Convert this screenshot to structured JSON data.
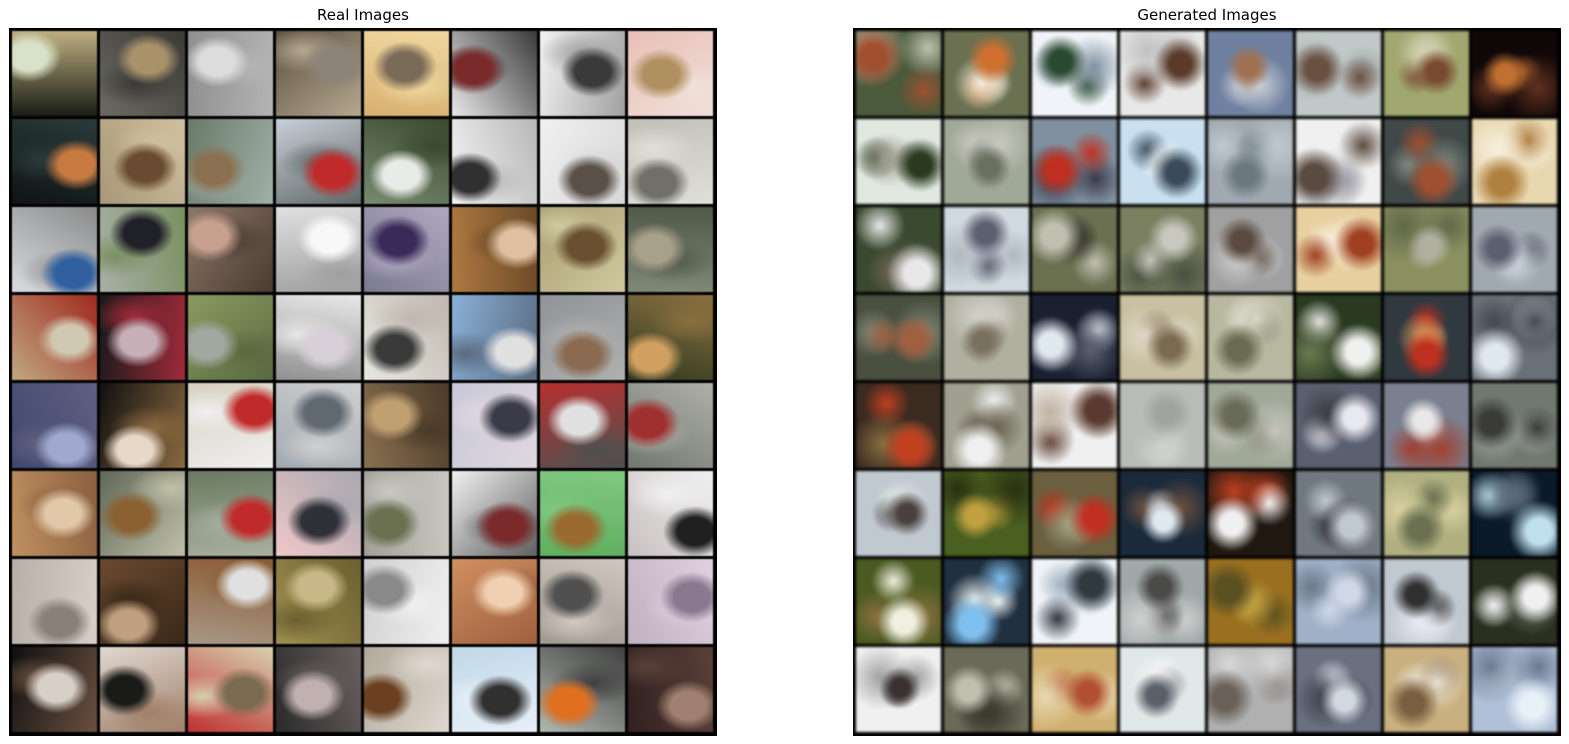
{
  "panels": [
    {
      "title": "Real Images",
      "kind": "real",
      "tiles": [
        [
          "#1a1e14",
          "#d8e2c8",
          "#bcae80"
        ],
        [
          "#6b6a64",
          "#a9926a",
          "#3b3a36"
        ],
        [
          "#8f8f8f",
          "#dcdcdc",
          "#b4b4b4"
        ],
        [
          "#5a5040",
          "#8c8478",
          "#b6a890"
        ],
        [
          "#d8b070",
          "#7a6a58",
          "#f0d8a0"
        ],
        [
          "#e8e8e8",
          "#7a2a2a",
          "#3a3a3a"
        ],
        [
          "#f2f2f2",
          "#3a3a3a",
          "#a0a0a0"
        ],
        [
          "#e8c0b8",
          "#b09060",
          "#f0e0d8"
        ],
        [
          "#101414",
          "#c87a40",
          "#2a3a3a"
        ],
        [
          "#a89878",
          "#6a4a30",
          "#d0c0a0"
        ],
        [
          "#6a7a68",
          "#8a7050",
          "#a0b0a8"
        ],
        [
          "#c8d0d8",
          "#c02a2a",
          "#606868"
        ],
        [
          "#7a8a70",
          "#e8ece8",
          "#3a4a30"
        ],
        [
          "#f4f4f4",
          "#303030",
          "#b8b8b8"
        ],
        [
          "#f0f0f0",
          "#5a5048",
          "#d8d8d8"
        ],
        [
          "#c0c0b8",
          "#707068",
          "#e0e0d8"
        ],
        [
          "#d8dce0",
          "#3060a0",
          "#8a8a8a"
        ],
        [
          "#a8b0a8",
          "#202028",
          "#7a9060"
        ],
        [
          "#8a7868",
          "#c8a090",
          "#4a3a30"
        ],
        [
          "#e0e0e0",
          "#f8f8f8",
          "#a0a0a0"
        ],
        [
          "#7a7a90",
          "#3a2a5a",
          "#b0a8c0"
        ],
        [
          "#b07840",
          "#e0c0a0",
          "#6a4a28"
        ],
        [
          "#a8a070",
          "#6a5030",
          "#d0c8a0"
        ],
        [
          "#808878",
          "#a8a088",
          "#505848"
        ],
        [
          "#c0a880",
          "#d0c8b0",
          "#a02a20"
        ],
        [
          "#1a1a1a",
          "#c8b0b8",
          "#a02a3a"
        ],
        [
          "#8a9a60",
          "#a0a8a0",
          "#5a6a40"
        ],
        [
          "#909090",
          "#d8d0d8",
          "#e8e8e8"
        ],
        [
          "#e8e8e0",
          "#3a3a3a",
          "#c0b8b0"
        ],
        [
          "#8ab0d8",
          "#e0e0e0",
          "#5a6a80"
        ],
        [
          "#909498",
          "#8a6a50",
          "#b0b0b0"
        ],
        [
          "#303a20",
          "#d0a060",
          "#8a7040"
        ],
        [
          "#404870",
          "#a0a8d0",
          "#606080"
        ],
        [
          "#101010",
          "#e8d8c8",
          "#8a6a40"
        ],
        [
          "#d8d0c0",
          "#c02a2a",
          "#f0f0f0"
        ],
        [
          "#a0a8b0",
          "#606870",
          "#d0d0d0"
        ],
        [
          "#8a7050",
          "#c0a070",
          "#4a3a28"
        ],
        [
          "#c8c8d8",
          "#3a3a48",
          "#e0d8e0"
        ],
        [
          "#b83030",
          "#e0e0e0",
          "#505050"
        ],
        [
          "#707870",
          "#a03030",
          "#b0b0a8"
        ],
        [
          "#c09060",
          "#e0c8a8",
          "#8a6040"
        ],
        [
          "#606858",
          "#8a6030",
          "#c0c0a8"
        ],
        [
          "#6a7a60",
          "#c02a2a",
          "#a8b0a0"
        ],
        [
          "#f0c8c8",
          "#303038",
          "#a8a8b0"
        ],
        [
          "#a0a098",
          "#6a7050",
          "#c8c8c0"
        ],
        [
          "#f0f0f0",
          "#7a2a2a",
          "#606060"
        ],
        [
          "#60b060",
          "#9a6a30",
          "#80c880"
        ],
        [
          "#c8c0c0",
          "#202020",
          "#f0f0f0"
        ],
        [
          "#b8b0a8",
          "#8a8078",
          "#d8d0c8"
        ],
        [
          "#6a4a30",
          "#c0a080",
          "#3a2818"
        ],
        [
          "#a89888",
          "#e0e0e0",
          "#8a5a30"
        ],
        [
          "#a09050",
          "#c8b888",
          "#6a6030"
        ],
        [
          "#d0d0d0",
          "#8a8a8a",
          "#f0f0f0"
        ],
        [
          "#d09060",
          "#f0d0b0",
          "#a06040"
        ],
        [
          "#a09890",
          "#505050",
          "#d0c8c0"
        ],
        [
          "#c0b0c0",
          "#8a7890",
          "#e0d0e0"
        ],
        [
          "#101010",
          "#d8d0c8",
          "#6a5040"
        ],
        [
          "#e0d8d0",
          "#1a1a18",
          "#a0806a"
        ],
        [
          "#c03030",
          "#7a6a50",
          "#d8d0b0"
        ],
        [
          "#2a2a2a",
          "#c0b0b0",
          "#6a6060"
        ],
        [
          "#b0a898",
          "#6a4020",
          "#e0d8d0"
        ],
        [
          "#c0d8e8",
          "#303030",
          "#e8f0f8"
        ],
        [
          "#b0b8b0",
          "#e07020",
          "#404040"
        ],
        [
          "#302020",
          "#a08070",
          "#5a4038"
        ]
      ]
    },
    {
      "title": "Generated Images",
      "kind": "generated",
      "tiles": [
        [
          "#4a5a3a",
          "#a05030",
          "#c0c0b0"
        ],
        [
          "#6a7050",
          "#d07030",
          "#f0f0e0"
        ],
        [
          "#f0f4f8",
          "#2a4a30",
          "#8090a0"
        ],
        [
          "#e8e8e8",
          "#5a3a2a",
          "#c0c0c0"
        ],
        [
          "#7080a0",
          "#a07050",
          "#c8d0d8"
        ],
        [
          "#c0c8c8",
          "#6a5040",
          "#a0a8a8"
        ],
        [
          "#a0a870",
          "#7a4a30",
          "#d0d0b0"
        ],
        [
          "#100808",
          "#c07030",
          "#603020"
        ],
        [
          "#e0e8e0",
          "#2a3a20",
          "#a0a090"
        ],
        [
          "#a0a898",
          "#6a7060",
          "#c8c8c0"
        ],
        [
          "#8090a0",
          "#c03020",
          "#3a3a48"
        ],
        [
          "#c8e0f0",
          "#3a4a5a",
          "#f0f8f8"
        ],
        [
          "#a0a8b0",
          "#6a7880",
          "#c0c8d0"
        ],
        [
          "#f0f0f0",
          "#5a4a40",
          "#a0a0a8"
        ],
        [
          "#404848",
          "#a05030",
          "#808880"
        ],
        [
          "#e8d8b0",
          "#b08040",
          "#f8f0e0"
        ],
        [
          "#3a4a30",
          "#e8e8e8",
          "#6a6050"
        ],
        [
          "#d0d8e0",
          "#5a6070",
          "#b0b8c0"
        ],
        [
          "#6a7050",
          "#c0c0b0",
          "#3a3a30"
        ],
        [
          "#7a8060",
          "#c8c8c0",
          "#4a5040"
        ],
        [
          "#a0a0a0",
          "#5a4a40",
          "#d0d0d0"
        ],
        [
          "#e8d0a0",
          "#a04020",
          "#f8f0e0"
        ],
        [
          "#8a9060",
          "#b0b0a0",
          "#606848"
        ],
        [
          "#a0a8b0",
          "#5a6070",
          "#c8d0d8"
        ],
        [
          "#4a5040",
          "#a06040",
          "#808878"
        ],
        [
          "#b0b0a0",
          "#7a7060",
          "#d0d0c8"
        ],
        [
          "#1a2030",
          "#e0e8f0",
          "#5a6070"
        ],
        [
          "#c8c0a0",
          "#7a6a50",
          "#e0d8c8"
        ],
        [
          "#b8b8a0",
          "#6a6a50",
          "#d8d8c8"
        ],
        [
          "#2a3a20",
          "#f0f0f0",
          "#6a7a50"
        ],
        [
          "#303840",
          "#c03020",
          "#e0a060"
        ],
        [
          "#6a7078",
          "#e0e8f0",
          "#404850"
        ],
        [
          "#3a2a20",
          "#c04020",
          "#8a7040"
        ],
        [
          "#a0a090",
          "#f0f0f0",
          "#6a6050"
        ],
        [
          "#f0f0f0",
          "#5a3a30",
          "#c0b0a0"
        ],
        [
          "#b8bcb8",
          "#a0a4a0",
          "#d0d4d0"
        ],
        [
          "#a0a898",
          "#6a6a58",
          "#c8c8c0"
        ],
        [
          "#5a6070",
          "#e8e8f0",
          "#3a3a40"
        ],
        [
          "#7a8090",
          "#e8e8e8",
          "#a04030"
        ],
        [
          "#707870",
          "#3a3a38",
          "#a0a8a0"
        ],
        [
          "#c0c8d0",
          "#4a4040",
          "#e0e8e8"
        ],
        [
          "#4a6020",
          "#c0a040",
          "#2a3010"
        ],
        [
          "#6a6040",
          "#c03020",
          "#a0a080"
        ],
        [
          "#1a2a3a",
          "#e0e8f0",
          "#6a5040"
        ],
        [
          "#201810",
          "#f0f0f0",
          "#c04020"
        ],
        [
          "#707880",
          "#c0c8d0",
          "#3a3a40"
        ],
        [
          "#b0b080",
          "#6a7050",
          "#d8d0a0"
        ],
        [
          "#0a1a28",
          "#c0e0f0",
          "#5a6a78"
        ],
        [
          "#4a5a20",
          "#f0f0e0",
          "#8a7040"
        ],
        [
          "#203040",
          "#80c0f0",
          "#f0f8f8"
        ],
        [
          "#f0f4f8",
          "#303840",
          "#a0b0c0"
        ],
        [
          "#a0a8a8",
          "#4a4a48",
          "#d0d0d0"
        ],
        [
          "#9a7020",
          "#5a5020",
          "#c0a040"
        ],
        [
          "#a0b0c8",
          "#d0d8e8",
          "#6a7888"
        ],
        [
          "#c0c8d0",
          "#303030",
          "#e8e8f0"
        ],
        [
          "#2a3020",
          "#f0f0f0",
          "#6a7060"
        ],
        [
          "#f0f0f0",
          "#3a3030",
          "#a0a0a0"
        ],
        [
          "#6a6a58",
          "#c0c0b0",
          "#3a3a30"
        ],
        [
          "#d0b070",
          "#b05030",
          "#e8d8b0"
        ],
        [
          "#e0e8e8",
          "#5a6068",
          "#f8f8f8"
        ],
        [
          "#b0b0b0",
          "#6a6058",
          "#d8d8d8"
        ],
        [
          "#6a7080",
          "#d0d8e0",
          "#3a4048"
        ],
        [
          "#c8b080",
          "#7a6040",
          "#e8e0d0"
        ],
        [
          "#b0c0d8",
          "#e8f0f8",
          "#6a7890"
        ]
      ]
    }
  ]
}
